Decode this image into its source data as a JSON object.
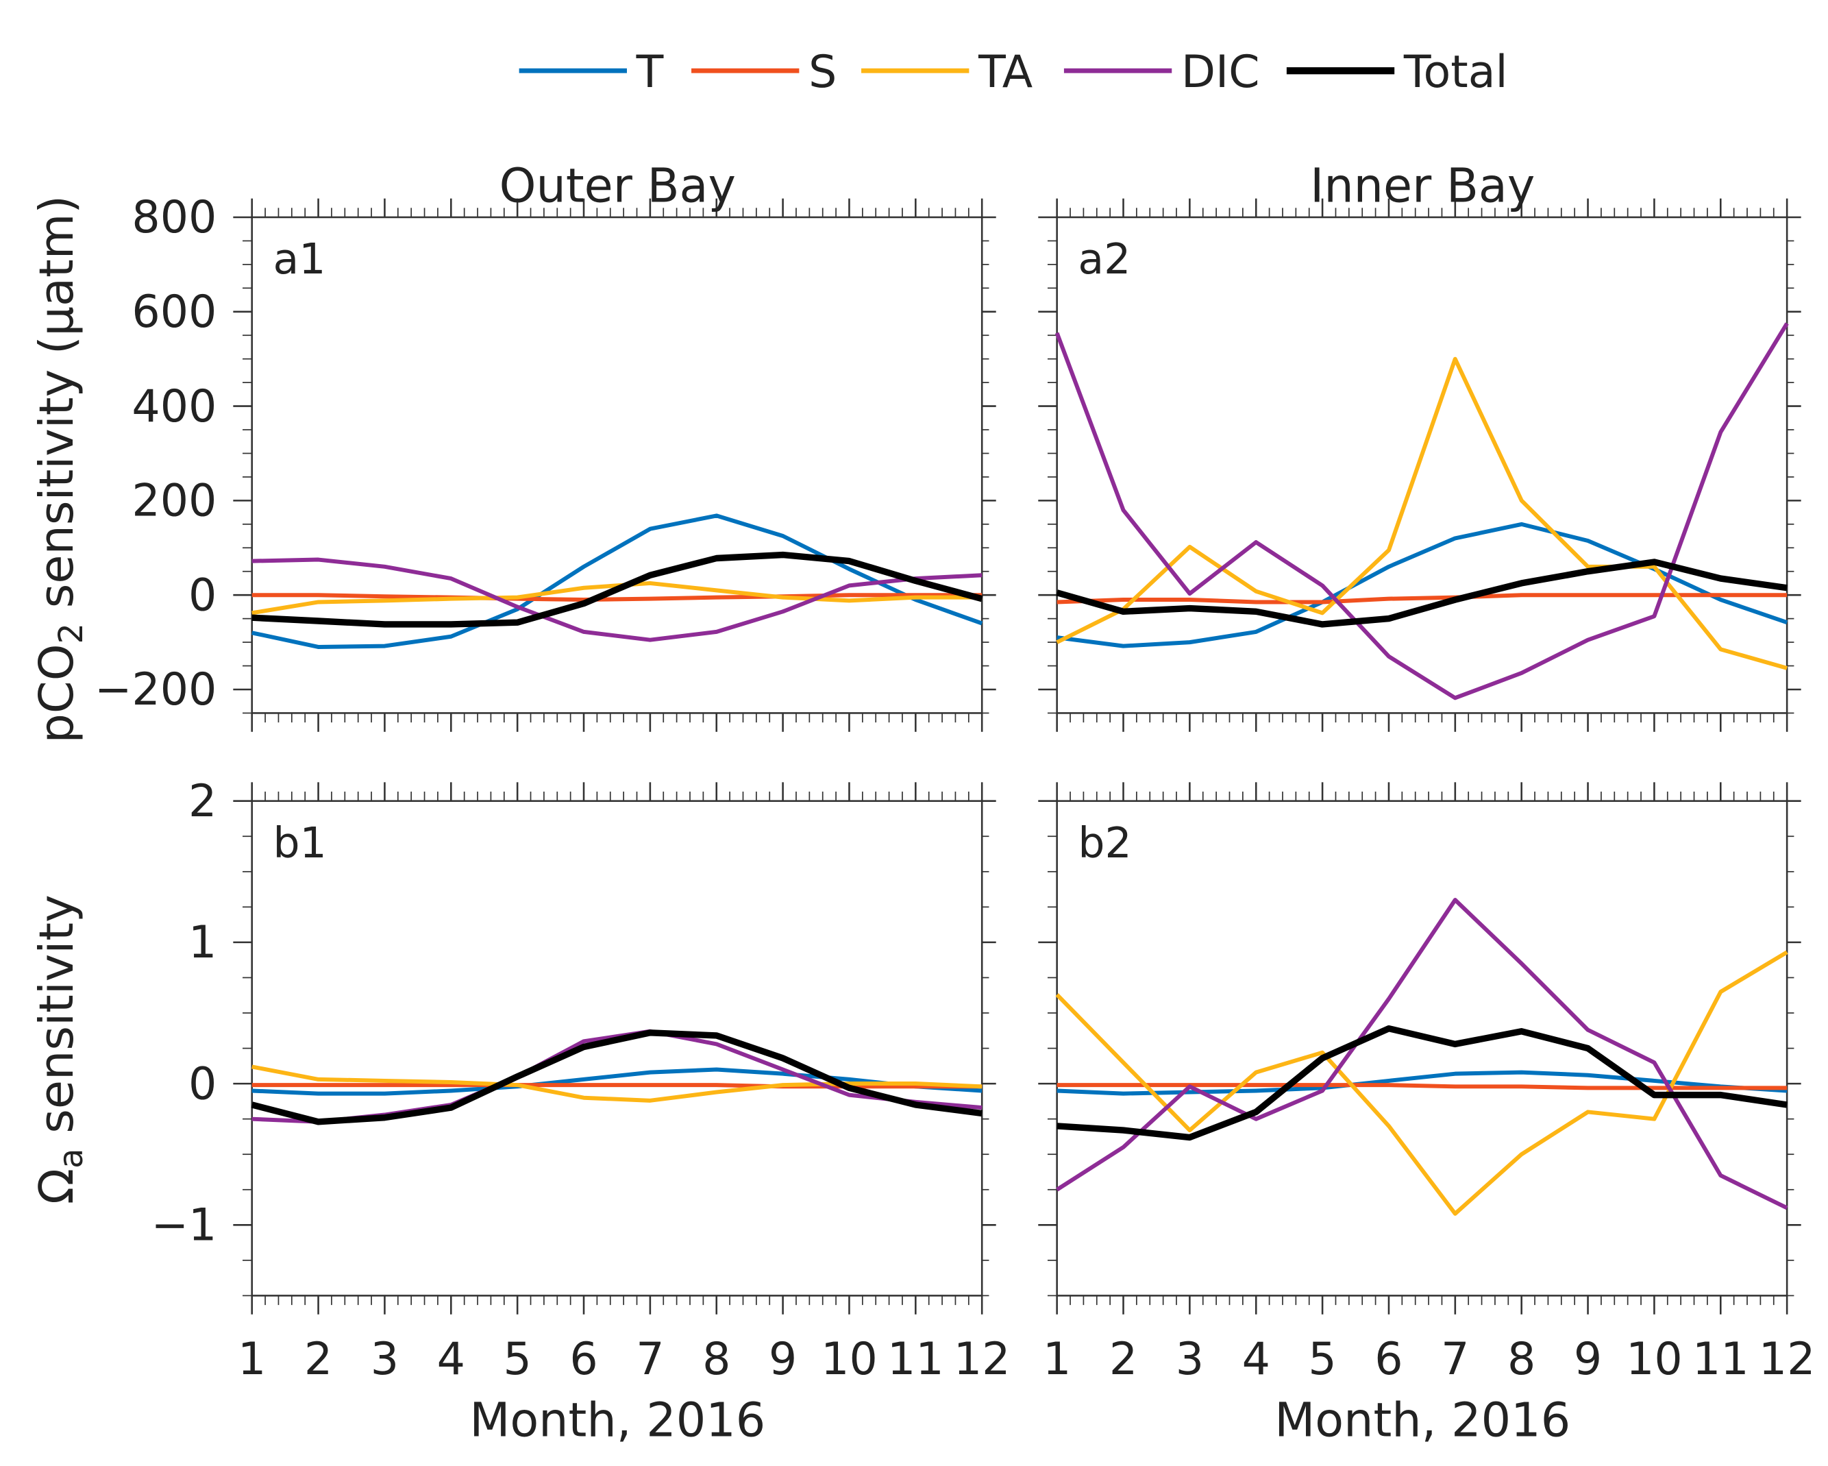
{
  "chart_data": {
    "type": "line",
    "legend": {
      "placement": "top-center",
      "entries": [
        {
          "name": "T",
          "color": "#0072BD"
        },
        {
          "name": "S",
          "color": "#F0501E"
        },
        {
          "name": "TA",
          "color": "#FDB515"
        },
        {
          "name": "DIC",
          "color": "#8E2C96"
        },
        {
          "name": "Total",
          "color": "#000000"
        }
      ]
    },
    "x": [
      1,
      2,
      3,
      4,
      5,
      6,
      7,
      8,
      9,
      10,
      11,
      12
    ],
    "xticks": [
      "1",
      "2",
      "3",
      "4",
      "5",
      "6",
      "7",
      "8",
      "9",
      "10",
      "11",
      "12"
    ],
    "xlabel": "Month, 2016",
    "columns": [
      "Outer Bay",
      "Inner Bay"
    ],
    "rows": [
      {
        "ylabel": "pCO2 sensitivity (μatm)",
        "ylabel_main": "pCO",
        "ylabel_sub": "2",
        "ylabel_rest": " sensitivity (μatm)",
        "ylim": [
          -250,
          800
        ],
        "yticks": [
          -200,
          0,
          200,
          400,
          600,
          800
        ],
        "ytick_labels": [
          "−200",
          "0",
          "200",
          "400",
          "600",
          "800"
        ]
      },
      {
        "ylabel": "Ωa sensitivity",
        "ylabel_main": "Ω",
        "ylabel_sub": "a",
        "ylabel_rest": " sensitivity",
        "ylim": [
          -1.5,
          2
        ],
        "yticks": [
          -1,
          0,
          1,
          2
        ],
        "ytick_labels": [
          "−1",
          "0",
          "1",
          "2"
        ]
      }
    ],
    "panels": [
      {
        "label": "a1",
        "row": 0,
        "col": 0,
        "series": [
          {
            "name": "T",
            "values": [
              -80,
              -110,
              -108,
              -88,
              -30,
              60,
              140,
              168,
              125,
              55,
              -10,
              -60
            ]
          },
          {
            "name": "S",
            "values": [
              0,
              0,
              -3,
              -5,
              -8,
              -10,
              -8,
              -5,
              -3,
              0,
              0,
              0
            ]
          },
          {
            "name": "TA",
            "values": [
              -38,
              -15,
              -12,
              -8,
              -5,
              15,
              25,
              10,
              -5,
              -12,
              -5,
              -5
            ]
          },
          {
            "name": "DIC",
            "values": [
              72,
              75,
              60,
              35,
              -25,
              -78,
              -95,
              -78,
              -35,
              20,
              35,
              42
            ]
          },
          {
            "name": "Total",
            "values": [
              -48,
              -55,
              -62,
              -62,
              -58,
              -18,
              42,
              78,
              85,
              72,
              30,
              -8
            ]
          }
        ]
      },
      {
        "label": "a2",
        "row": 0,
        "col": 1,
        "series": [
          {
            "name": "T",
            "values": [
              -90,
              -108,
              -100,
              -78,
              -15,
              60,
              120,
              150,
              115,
              55,
              -10,
              -58
            ]
          },
          {
            "name": "S",
            "values": [
              -15,
              -10,
              -10,
              -15,
              -15,
              -8,
              -5,
              0,
              0,
              0,
              0,
              0
            ]
          },
          {
            "name": "TA",
            "values": [
              -100,
              -30,
              102,
              8,
              -38,
              95,
              500,
              200,
              60,
              60,
              -115,
              -155
            ]
          },
          {
            "name": "DIC",
            "values": [
              555,
              180,
              3,
              112,
              20,
              -130,
              -218,
              -165,
              -95,
              -45,
              345,
              575
            ]
          },
          {
            "name": "Total",
            "values": [
              5,
              -35,
              -28,
              -35,
              -62,
              -50,
              -10,
              25,
              50,
              70,
              35,
              15
            ]
          }
        ]
      },
      {
        "label": "b1",
        "row": 1,
        "col": 0,
        "series": [
          {
            "name": "T",
            "values": [
              -0.05,
              -0.07,
              -0.07,
              -0.05,
              -0.02,
              0.03,
              0.08,
              0.1,
              0.07,
              0.03,
              -0.02,
              -0.05
            ]
          },
          {
            "name": "S",
            "values": [
              -0.01,
              -0.01,
              -0.01,
              -0.01,
              -0.01,
              -0.01,
              -0.01,
              -0.01,
              -0.02,
              -0.02,
              -0.02,
              -0.02
            ]
          },
          {
            "name": "TA",
            "values": [
              0.12,
              0.03,
              0.02,
              0.01,
              -0.01,
              -0.1,
              -0.12,
              -0.06,
              -0.01,
              0.0,
              0.0,
              -0.02
            ]
          },
          {
            "name": "DIC",
            "values": [
              -0.25,
              -0.27,
              -0.22,
              -0.15,
              0.05,
              0.3,
              0.37,
              0.28,
              0.1,
              -0.08,
              -0.13,
              -0.17
            ]
          },
          {
            "name": "Total",
            "values": [
              -0.15,
              -0.27,
              -0.24,
              -0.17,
              0.05,
              0.26,
              0.36,
              0.34,
              0.18,
              -0.03,
              -0.15,
              -0.21
            ]
          }
        ]
      },
      {
        "label": "b2",
        "row": 1,
        "col": 1,
        "series": [
          {
            "name": "T",
            "values": [
              -0.05,
              -0.07,
              -0.06,
              -0.05,
              -0.03,
              0.02,
              0.07,
              0.08,
              0.06,
              0.02,
              -0.02,
              -0.05
            ]
          },
          {
            "name": "S",
            "values": [
              -0.01,
              -0.01,
              -0.01,
              -0.01,
              -0.01,
              -0.01,
              -0.02,
              -0.02,
              -0.03,
              -0.03,
              -0.03,
              -0.03
            ]
          },
          {
            "name": "TA",
            "values": [
              0.63,
              0.15,
              -0.33,
              0.08,
              0.22,
              -0.3,
              -0.92,
              -0.5,
              -0.2,
              -0.25,
              0.65,
              0.93
            ]
          },
          {
            "name": "DIC",
            "values": [
              -0.75,
              -0.45,
              -0.02,
              -0.25,
              -0.05,
              0.6,
              1.3,
              0.85,
              0.38,
              0.15,
              -0.65,
              -0.88
            ]
          },
          {
            "name": "Total",
            "values": [
              -0.3,
              -0.33,
              -0.38,
              -0.2,
              0.18,
              0.39,
              0.28,
              0.37,
              0.25,
              -0.08,
              -0.08,
              -0.15
            ]
          }
        ]
      }
    ]
  }
}
